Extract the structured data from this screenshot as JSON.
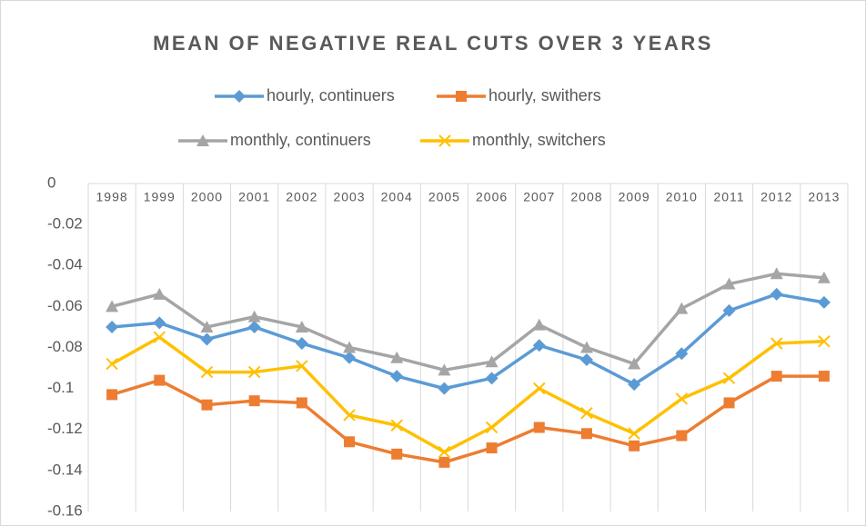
{
  "chart_data": {
    "type": "line",
    "title": "MEAN OF NEGATIVE REAL CUTS OVER 3 YEARS",
    "categories": [
      "1998",
      "1999",
      "2000",
      "2001",
      "2002",
      "2003",
      "2004",
      "2005",
      "2006",
      "2007",
      "2008",
      "2009",
      "2010",
      "2011",
      "2012",
      "2013"
    ],
    "series": [
      {
        "name": "hourly, continuers",
        "color": "#5B9BD5",
        "marker": "diamond",
        "values": [
          -0.07,
          -0.068,
          -0.076,
          -0.07,
          -0.078,
          -0.085,
          -0.094,
          -0.1,
          -0.095,
          -0.079,
          -0.086,
          -0.098,
          -0.083,
          -0.062,
          -0.054,
          -0.058
        ]
      },
      {
        "name": "hourly, swithers",
        "color": "#ED7D31",
        "marker": "square",
        "values": [
          -0.103,
          -0.096,
          -0.108,
          -0.106,
          -0.107,
          -0.126,
          -0.132,
          -0.136,
          -0.129,
          -0.119,
          -0.122,
          -0.128,
          -0.123,
          -0.107,
          -0.094,
          -0.094
        ]
      },
      {
        "name": "monthly, continuers",
        "color": "#A5A5A5",
        "marker": "triangle",
        "values": [
          -0.06,
          -0.054,
          -0.07,
          -0.065,
          -0.07,
          -0.08,
          -0.085,
          -0.091,
          -0.087,
          -0.069,
          -0.08,
          -0.088,
          -0.061,
          -0.049,
          -0.044,
          -0.046
        ]
      },
      {
        "name": "monthly, switchers",
        "color": "#FFC000",
        "marker": "x",
        "values": [
          -0.088,
          -0.075,
          -0.092,
          -0.092,
          -0.089,
          -0.113,
          -0.118,
          -0.131,
          -0.119,
          -0.1,
          -0.112,
          -0.122,
          -0.105,
          -0.095,
          -0.078,
          -0.077
        ]
      }
    ],
    "ylim": [
      -0.16,
      0
    ],
    "yticks": [
      0,
      -0.02,
      -0.04,
      -0.06,
      -0.08,
      -0.1,
      -0.12,
      -0.14,
      -0.16
    ],
    "grid": "x"
  }
}
